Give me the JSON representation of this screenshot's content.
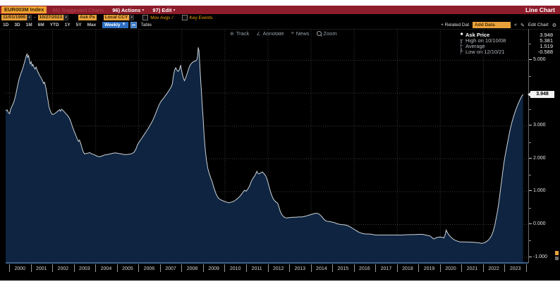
{
  "titlebar": {
    "ticker": "EUR003M Index",
    "suggested_charts": "95) Suggested Charts",
    "actions": "96) Actions",
    "edit": "97) Edit",
    "screen_title": "Line Chart"
  },
  "controls": {
    "date_start": "11/01/1999",
    "date_range_sep": "-",
    "date_end": "10/27/2023",
    "price_field": "Ask Px",
    "currency": "Local CCY",
    "mov_avgs_label": "Mov Avgs",
    "key_events_label": "Key Events"
  },
  "toolbar": {
    "periods": [
      "1D",
      "3D",
      "1M",
      "6M",
      "YTD",
      "1Y",
      "5Y",
      "Max"
    ],
    "frequency": "Weekly",
    "table_label": "Table",
    "related_data_label": "+ Related Dat",
    "add_data_placeholder": "Add Data",
    "edit_chart_label": "Edit Chart"
  },
  "icons": {
    "caret_down": "▾",
    "dropdown_arrow": "▼",
    "collapse": "«",
    "pencil": "✎",
    "gear": "⚙",
    "slash": "∕",
    "track": "⊕",
    "annotate": "∠",
    "news": "≡",
    "mk_square": "■",
    "mk_high": "┬",
    "mk_avg": "╌",
    "mk_low": "┴"
  },
  "chart_toolbar": {
    "items": [
      {
        "name": "track",
        "label": "Track"
      },
      {
        "name": "annotate",
        "label": "Annotate"
      },
      {
        "name": "news",
        "label": "News"
      },
      {
        "name": "zoom",
        "label": "Zoom"
      }
    ]
  },
  "legend": {
    "rows": [
      {
        "marker": "square",
        "label": "Ask Price",
        "value": "3.948",
        "primary": true
      },
      {
        "marker": "high",
        "label": "High on 10/10/08",
        "value": "5.381",
        "primary": false
      },
      {
        "marker": "avg",
        "label": "Average",
        "value": "1.519",
        "primary": false
      },
      {
        "marker": "low",
        "label": "Low on 12/10/21",
        "value": "-0.588",
        "primary": false
      }
    ]
  },
  "y_axis": {
    "labels": [
      {
        "value": 5,
        "text": "5.000"
      },
      {
        "value": 3,
        "text": "3.000"
      },
      {
        "value": 2,
        "text": "2.000"
      },
      {
        "value": 1,
        "text": "1.000"
      },
      {
        "value": 0,
        "text": "0.000"
      },
      {
        "value": -1,
        "text": "-1.000"
      }
    ],
    "minor_ticks": [
      5.5,
      4.5,
      3.5,
      2.5,
      1.5,
      0.5,
      -0.5
    ],
    "current_value": "3.948",
    "current_value_num": 3.948
  },
  "x_axis": {
    "years": [
      2000,
      2001,
      2002,
      2003,
      2004,
      2005,
      2006,
      2007,
      2008,
      2009,
      2010,
      2011,
      2012,
      2013,
      2014,
      2015,
      2016,
      2017,
      2018,
      2019,
      2020,
      2021,
      2022,
      2023
    ],
    "end_boundary": 2024
  },
  "chart_data": {
    "type": "area",
    "series_name": "EUR003M Index Ask Price",
    "title": "Line Chart",
    "x_unit": "year (weekly observations)",
    "xlim": [
      1999.836,
      2024.1
    ],
    "ylim": [
      -1.18,
      5.944
    ],
    "y_gridlines": [
      5,
      4,
      3,
      2,
      1,
      0,
      -1
    ],
    "x_gridlines": [
      2000,
      2002,
      2004,
      2006,
      2008,
      2010,
      2012,
      2014,
      2016,
      2018,
      2020,
      2022
    ],
    "stats": {
      "last": 3.948,
      "high": 5.381,
      "high_date": "10/10/08",
      "average": 1.519,
      "low": -0.588,
      "low_date": "12/10/21"
    },
    "line_color": "#ccd3d9",
    "fill_color": "#0e2440",
    "grid_color": "#3a3a3a",
    "points": [
      [
        1999.84,
        3.45
      ],
      [
        1999.9,
        3.48
      ],
      [
        1999.96,
        3.4
      ],
      [
        2000.02,
        3.36
      ],
      [
        2000.08,
        3.52
      ],
      [
        2000.15,
        3.62
      ],
      [
        2000.22,
        3.72
      ],
      [
        2000.3,
        3.92
      ],
      [
        2000.38,
        4.18
      ],
      [
        2000.46,
        4.42
      ],
      [
        2000.54,
        4.58
      ],
      [
        2000.62,
        4.72
      ],
      [
        2000.69,
        4.88
      ],
      [
        2000.75,
        5.02
      ],
      [
        2000.79,
        5.12
      ],
      [
        2000.83,
        5.18
      ],
      [
        2000.86,
        5.08
      ],
      [
        2000.9,
        5.13
      ],
      [
        2000.94,
        5.0
      ],
      [
        2000.98,
        4.88
      ],
      [
        2001.02,
        4.94
      ],
      [
        2001.06,
        4.82
      ],
      [
        2001.1,
        4.86
      ],
      [
        2001.15,
        4.78
      ],
      [
        2001.2,
        4.72
      ],
      [
        2001.25,
        4.78
      ],
      [
        2001.3,
        4.68
      ],
      [
        2001.36,
        4.6
      ],
      [
        2001.42,
        4.52
      ],
      [
        2001.48,
        4.46
      ],
      [
        2001.54,
        4.38
      ],
      [
        2001.6,
        4.28
      ],
      [
        2001.64,
        4.32
      ],
      [
        2001.68,
        4.22
      ],
      [
        2001.72,
        4.1
      ],
      [
        2001.76,
        3.92
      ],
      [
        2001.8,
        3.78
      ],
      [
        2001.84,
        3.6
      ],
      [
        2001.88,
        3.5
      ],
      [
        2001.93,
        3.42
      ],
      [
        2001.98,
        3.35
      ],
      [
        2002.05,
        3.34
      ],
      [
        2002.12,
        3.37
      ],
      [
        2002.2,
        3.41
      ],
      [
        2002.28,
        3.45
      ],
      [
        2002.34,
        3.49
      ],
      [
        2002.38,
        3.44
      ],
      [
        2002.44,
        3.5
      ],
      [
        2002.5,
        3.46
      ],
      [
        2002.57,
        3.41
      ],
      [
        2002.64,
        3.36
      ],
      [
        2002.72,
        3.3
      ],
      [
        2002.8,
        3.22
      ],
      [
        2002.87,
        3.1
      ],
      [
        2002.94,
        2.96
      ],
      [
        2003.0,
        2.86
      ],
      [
        2003.06,
        2.76
      ],
      [
        2003.12,
        2.66
      ],
      [
        2003.18,
        2.56
      ],
      [
        2003.22,
        2.52
      ],
      [
        2003.26,
        2.56
      ],
      [
        2003.32,
        2.46
      ],
      [
        2003.38,
        2.32
      ],
      [
        2003.44,
        2.2
      ],
      [
        2003.5,
        2.14
      ],
      [
        2003.58,
        2.15
      ],
      [
        2003.66,
        2.16
      ],
      [
        2003.73,
        2.18
      ],
      [
        2003.8,
        2.15
      ],
      [
        2003.88,
        2.13
      ],
      [
        2003.96,
        2.11
      ],
      [
        2004.08,
        2.07
      ],
      [
        2004.2,
        2.05
      ],
      [
        2004.32,
        2.08
      ],
      [
        2004.44,
        2.11
      ],
      [
        2004.56,
        2.12
      ],
      [
        2004.7,
        2.14
      ],
      [
        2004.84,
        2.16
      ],
      [
        2004.96,
        2.17
      ],
      [
        2005.08,
        2.15
      ],
      [
        2005.2,
        2.14
      ],
      [
        2005.32,
        2.12
      ],
      [
        2005.45,
        2.12
      ],
      [
        2005.58,
        2.13
      ],
      [
        2005.7,
        2.15
      ],
      [
        2005.8,
        2.19
      ],
      [
        2005.88,
        2.28
      ],
      [
        2005.96,
        2.42
      ],
      [
        2006.05,
        2.52
      ],
      [
        2006.15,
        2.61
      ],
      [
        2006.25,
        2.71
      ],
      [
        2006.35,
        2.81
      ],
      [
        2006.45,
        2.91
      ],
      [
        2006.55,
        3.02
      ],
      [
        2006.65,
        3.14
      ],
      [
        2006.75,
        3.28
      ],
      [
        2006.85,
        3.45
      ],
      [
        2006.95,
        3.62
      ],
      [
        2007.05,
        3.74
      ],
      [
        2007.15,
        3.82
      ],
      [
        2007.25,
        3.91
      ],
      [
        2007.35,
        4.0
      ],
      [
        2007.45,
        4.1
      ],
      [
        2007.52,
        4.18
      ],
      [
        2007.58,
        4.28
      ],
      [
        2007.62,
        4.5
      ],
      [
        2007.68,
        4.68
      ],
      [
        2007.73,
        4.76
      ],
      [
        2007.78,
        4.7
      ],
      [
        2007.84,
        4.65
      ],
      [
        2007.9,
        4.7
      ],
      [
        2007.96,
        4.84
      ],
      [
        2008.0,
        4.68
      ],
      [
        2008.05,
        4.54
      ],
      [
        2008.1,
        4.42
      ],
      [
        2008.14,
        4.37
      ],
      [
        2008.2,
        4.46
      ],
      [
        2008.27,
        4.6
      ],
      [
        2008.34,
        4.74
      ],
      [
        2008.4,
        4.84
      ],
      [
        2008.47,
        4.9
      ],
      [
        2008.54,
        4.94
      ],
      [
        2008.6,
        4.96
      ],
      [
        2008.66,
        4.97
      ],
      [
        2008.71,
        5.0
      ],
      [
        2008.75,
        5.12
      ],
      [
        2008.78,
        5.38
      ],
      [
        2008.81,
        5.28
      ],
      [
        2008.84,
        4.96
      ],
      [
        2008.88,
        4.5
      ],
      [
        2008.92,
        4.1
      ],
      [
        2008.96,
        3.66
      ],
      [
        2009.0,
        3.26
      ],
      [
        2009.05,
        2.7
      ],
      [
        2009.1,
        2.3
      ],
      [
        2009.16,
        1.95
      ],
      [
        2009.22,
        1.7
      ],
      [
        2009.28,
        1.56
      ],
      [
        2009.35,
        1.42
      ],
      [
        2009.42,
        1.3
      ],
      [
        2009.5,
        1.12
      ],
      [
        2009.57,
        0.98
      ],
      [
        2009.64,
        0.87
      ],
      [
        2009.72,
        0.79
      ],
      [
        2009.8,
        0.75
      ],
      [
        2009.9,
        0.72
      ],
      [
        2010.0,
        0.69
      ],
      [
        2010.1,
        0.67
      ],
      [
        2010.2,
        0.65
      ],
      [
        2010.3,
        0.67
      ],
      [
        2010.4,
        0.69
      ],
      [
        2010.5,
        0.73
      ],
      [
        2010.6,
        0.78
      ],
      [
        2010.7,
        0.84
      ],
      [
        2010.8,
        0.92
      ],
      [
        2010.88,
        1.0
      ],
      [
        2010.94,
        1.03
      ],
      [
        2011.0,
        1.0
      ],
      [
        2011.08,
        1.07
      ],
      [
        2011.16,
        1.16
      ],
      [
        2011.24,
        1.3
      ],
      [
        2011.32,
        1.4
      ],
      [
        2011.4,
        1.47
      ],
      [
        2011.46,
        1.55
      ],
      [
        2011.5,
        1.61
      ],
      [
        2011.54,
        1.55
      ],
      [
        2011.6,
        1.53
      ],
      [
        2011.68,
        1.56
      ],
      [
        2011.76,
        1.59
      ],
      [
        2011.84,
        1.53
      ],
      [
        2011.92,
        1.46
      ],
      [
        2012.0,
        1.31
      ],
      [
        2012.07,
        1.13
      ],
      [
        2012.14,
        0.97
      ],
      [
        2012.2,
        0.86
      ],
      [
        2012.27,
        0.76
      ],
      [
        2012.34,
        0.7
      ],
      [
        2012.4,
        0.67
      ],
      [
        2012.46,
        0.64
      ],
      [
        2012.52,
        0.53
      ],
      [
        2012.58,
        0.4
      ],
      [
        2012.65,
        0.3
      ],
      [
        2012.72,
        0.24
      ],
      [
        2012.8,
        0.2
      ],
      [
        2012.9,
        0.19
      ],
      [
        2013.0,
        0.2
      ],
      [
        2013.15,
        0.21
      ],
      [
        2013.3,
        0.21
      ],
      [
        2013.45,
        0.22
      ],
      [
        2013.6,
        0.22
      ],
      [
        2013.75,
        0.24
      ],
      [
        2013.9,
        0.27
      ],
      [
        2014.0,
        0.29
      ],
      [
        2014.1,
        0.31
      ],
      [
        2014.2,
        0.33
      ],
      [
        2014.3,
        0.33
      ],
      [
        2014.4,
        0.3
      ],
      [
        2014.5,
        0.24
      ],
      [
        2014.6,
        0.16
      ],
      [
        2014.7,
        0.1
      ],
      [
        2014.8,
        0.08
      ],
      [
        2014.9,
        0.08
      ],
      [
        2015.0,
        0.06
      ],
      [
        2015.1,
        0.05
      ],
      [
        2015.2,
        0.02
      ],
      [
        2015.3,
        0.0
      ],
      [
        2015.4,
        -0.01
      ],
      [
        2015.55,
        -0.02
      ],
      [
        2015.7,
        -0.04
      ],
      [
        2015.85,
        -0.09
      ],
      [
        2016.0,
        -0.15
      ],
      [
        2016.12,
        -0.2
      ],
      [
        2016.25,
        -0.25
      ],
      [
        2016.4,
        -0.28
      ],
      [
        2016.55,
        -0.3
      ],
      [
        2016.7,
        -0.3
      ],
      [
        2016.85,
        -0.31
      ],
      [
        2017.0,
        -0.33
      ],
      [
        2017.25,
        -0.33
      ],
      [
        2017.5,
        -0.33
      ],
      [
        2017.75,
        -0.33
      ],
      [
        2018.0,
        -0.33
      ],
      [
        2018.25,
        -0.33
      ],
      [
        2018.5,
        -0.32
      ],
      [
        2018.75,
        -0.32
      ],
      [
        2019.0,
        -0.31
      ],
      [
        2019.2,
        -0.31
      ],
      [
        2019.4,
        -0.34
      ],
      [
        2019.55,
        -0.36
      ],
      [
        2019.65,
        -0.42
      ],
      [
        2019.72,
        -0.45
      ],
      [
        2019.8,
        -0.42
      ],
      [
        2019.9,
        -0.4
      ],
      [
        2020.0,
        -0.39
      ],
      [
        2020.1,
        -0.4
      ],
      [
        2020.18,
        -0.42
      ],
      [
        2020.24,
        -0.33
      ],
      [
        2020.29,
        -0.18
      ],
      [
        2020.34,
        -0.25
      ],
      [
        2020.42,
        -0.33
      ],
      [
        2020.5,
        -0.39
      ],
      [
        2020.6,
        -0.45
      ],
      [
        2020.7,
        -0.49
      ],
      [
        2020.82,
        -0.52
      ],
      [
        2020.94,
        -0.54
      ],
      [
        2021.1,
        -0.54
      ],
      [
        2021.3,
        -0.545
      ],
      [
        2021.5,
        -0.55
      ],
      [
        2021.7,
        -0.56
      ],
      [
        2021.85,
        -0.57
      ],
      [
        2021.94,
        -0.588
      ],
      [
        2022.0,
        -0.575
      ],
      [
        2022.08,
        -0.56
      ],
      [
        2022.16,
        -0.53
      ],
      [
        2022.24,
        -0.49
      ],
      [
        2022.32,
        -0.43
      ],
      [
        2022.4,
        -0.34
      ],
      [
        2022.47,
        -0.22
      ],
      [
        2022.54,
        -0.05
      ],
      [
        2022.6,
        0.15
      ],
      [
        2022.66,
        0.35
      ],
      [
        2022.72,
        0.6
      ],
      [
        2022.78,
        0.9
      ],
      [
        2022.84,
        1.2
      ],
      [
        2022.9,
        1.52
      ],
      [
        2022.96,
        1.82
      ],
      [
        2023.02,
        2.06
      ],
      [
        2023.1,
        2.35
      ],
      [
        2023.18,
        2.62
      ],
      [
        2023.26,
        2.88
      ],
      [
        2023.34,
        3.1
      ],
      [
        2023.42,
        3.28
      ],
      [
        2023.5,
        3.44
      ],
      [
        2023.58,
        3.58
      ],
      [
        2023.66,
        3.71
      ],
      [
        2023.74,
        3.82
      ],
      [
        2023.8,
        3.9
      ],
      [
        2023.86,
        3.948
      ]
    ]
  },
  "colors": {
    "titlebar_red": "#8e1d2b",
    "amber": "#e8a13b",
    "selected_blue": "#2e6fc4",
    "fill_navy": "#0e2440"
  }
}
